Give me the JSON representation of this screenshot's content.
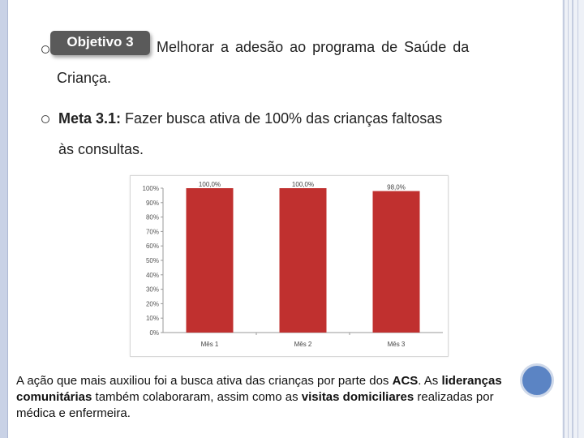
{
  "slide": {
    "badge": "Objetivo 3",
    "objective_line1": "Melhorar a adesão ao programa de Saúde da",
    "objective_line2": "Criança.",
    "meta_label": "Meta 3.1:",
    "meta_line1": "Fazer busca ativa de 100% das crianças faltosas",
    "meta_line2": "às consultas."
  },
  "caption": {
    "p1": "A ação que mais auxiliou foi a busca ativa das crianças por parte dos ",
    "b1": "ACS",
    "p2": ". As ",
    "b2": "lideranças comunitárias",
    "p3": " também colaboraram, assim como as ",
    "b3": "visitas domiciliares",
    "p4": " realizadas por médica e enfermeira."
  },
  "colors": {
    "bar": "#c0302f",
    "badge": "#5a5a5a",
    "nav_circle": "#5b84c4"
  },
  "chart_data": {
    "type": "bar",
    "categories": [
      "Mês 1",
      "Mês 2",
      "Mês 3"
    ],
    "values": [
      100.0,
      100.0,
      98.0
    ],
    "data_labels": [
      "100,0%",
      "100,0%",
      "98,0%"
    ],
    "yticks": [
      "0%",
      "10%",
      "20%",
      "30%",
      "40%",
      "50%",
      "60%",
      "70%",
      "80%",
      "90%",
      "100%"
    ],
    "ylim": [
      0,
      100
    ],
    "title": "",
    "xlabel": "",
    "ylabel": "",
    "grid": false,
    "legend": "none"
  }
}
